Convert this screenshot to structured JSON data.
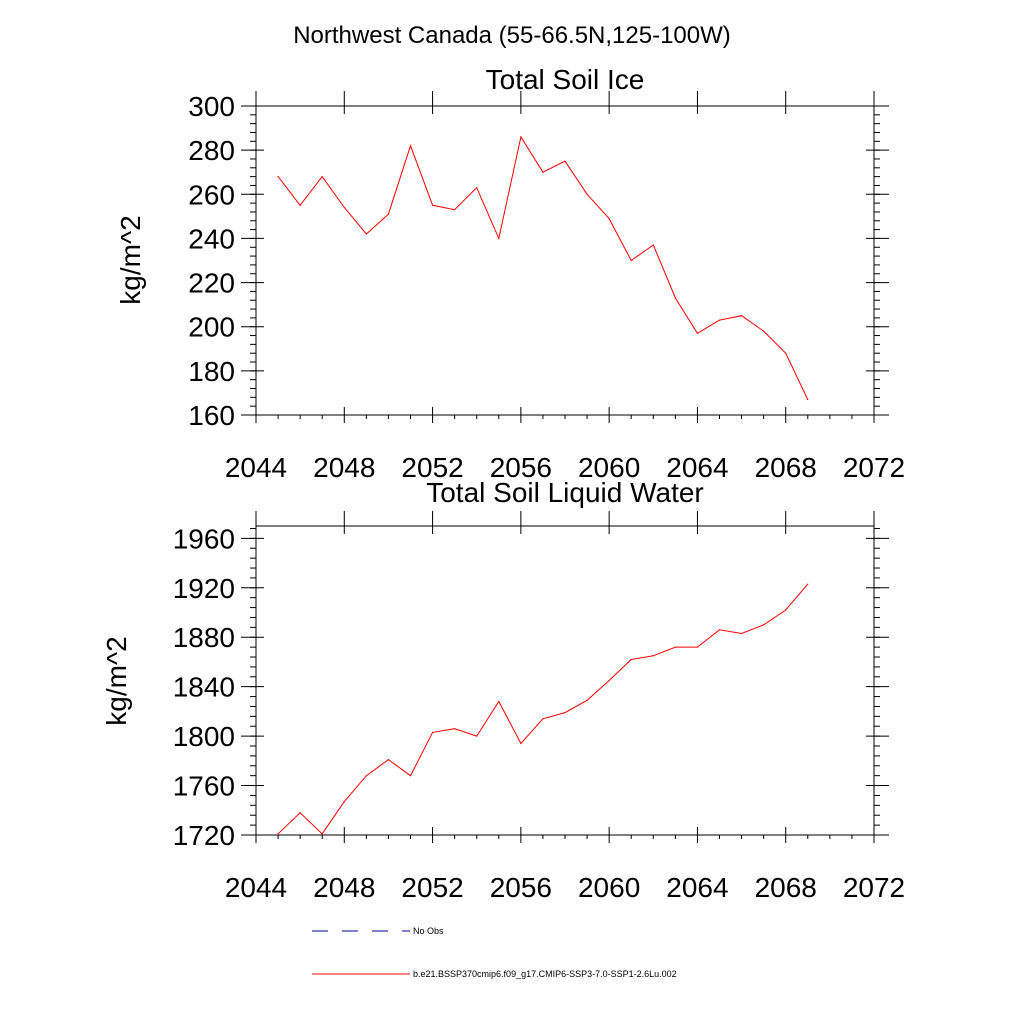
{
  "figure": {
    "suptitle": "Northwest Canada (55-66.5N,125-100W)"
  },
  "chart_data": [
    {
      "type": "line",
      "title": "Total Soil Ice",
      "xlabel": "",
      "ylabel": "kg/m^2",
      "xlim": [
        2044,
        2072
      ],
      "ylim": [
        160,
        300
      ],
      "xticks": [
        2044,
        2048,
        2052,
        2056,
        2060,
        2064,
        2068,
        2072
      ],
      "yticks": [
        160,
        180,
        200,
        220,
        240,
        260,
        280,
        300
      ],
      "x": [
        2045,
        2046,
        2047,
        2048,
        2049,
        2050,
        2051,
        2052,
        2053,
        2054,
        2055,
        2056,
        2057,
        2058,
        2059,
        2060,
        2061,
        2062,
        2063,
        2064,
        2065,
        2066,
        2067,
        2068,
        2069
      ],
      "series": [
        {
          "name": "b.e21.BSSP370cmip6.f09_g17.CMIP6-SSP3-7.0-SSP1-2.6Lu.002",
          "color": "#ff0000",
          "values": [
            268,
            255,
            268,
            254,
            242,
            251,
            282,
            255,
            253,
            263,
            240,
            286,
            270,
            275,
            260,
            249,
            230,
            237,
            213,
            197,
            203,
            205,
            198,
            188,
            167
          ]
        }
      ]
    },
    {
      "type": "line",
      "title": "Total Soil Liquid Water",
      "xlabel": "",
      "ylabel": "kg/m^2",
      "xlim": [
        2044,
        2072
      ],
      "ylim": [
        1720,
        1970
      ],
      "xticks": [
        2044,
        2048,
        2052,
        2056,
        2060,
        2064,
        2068,
        2072
      ],
      "yticks": [
        1720,
        1760,
        1800,
        1840,
        1880,
        1920,
        1960
      ],
      "x": [
        2045,
        2046,
        2047,
        2048,
        2049,
        2050,
        2051,
        2052,
        2053,
        2054,
        2055,
        2056,
        2057,
        2058,
        2059,
        2060,
        2061,
        2062,
        2063,
        2064,
        2065,
        2066,
        2067,
        2068,
        2069
      ],
      "series": [
        {
          "name": "b.e21.BSSP370cmip6.f09_g17.CMIP6-SSP3-7.0-SSP1-2.6Lu.002",
          "color": "#ff0000",
          "values": [
            1721,
            1738,
            1721,
            1747,
            1768,
            1781,
            1768,
            1803,
            1806,
            1800,
            1828,
            1794,
            1814,
            1819,
            1829,
            1845,
            1862,
            1865,
            1872,
            1872,
            1886,
            1883,
            1890,
            1902,
            1923
          ]
        }
      ]
    }
  ],
  "legend": [
    {
      "label": "No Obs",
      "color": "#0000a0",
      "dash": true
    },
    {
      "label": "b.e21.BSSP370cmip6.f09_g17.CMIP6-SSP3-7.0-SSP1-2.6Lu.002",
      "color": "#ff0000",
      "dash": false
    }
  ]
}
